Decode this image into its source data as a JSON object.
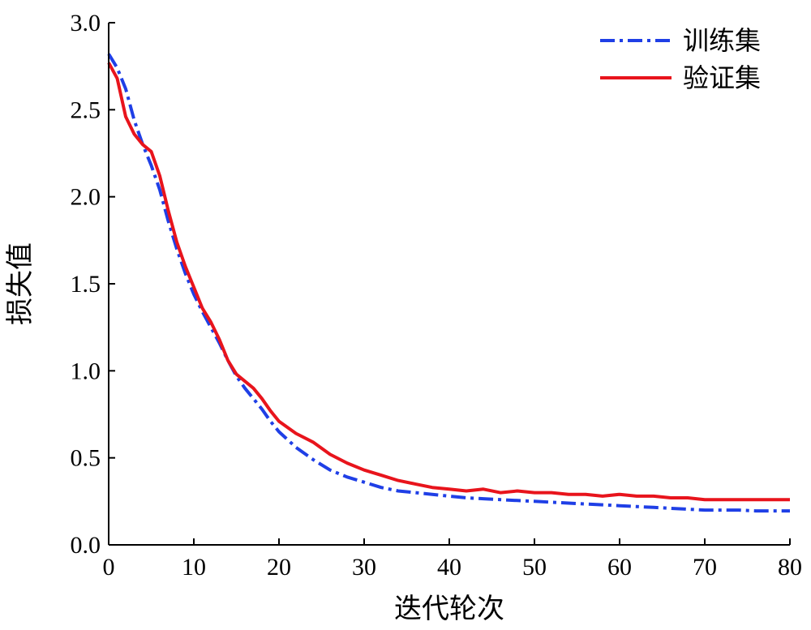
{
  "chart_data": {
    "type": "line",
    "xlabel": "迭代轮次",
    "ylabel": "损失值",
    "xlim": [
      0,
      80
    ],
    "ylim": [
      0.0,
      3.0
    ],
    "xticks": [
      "0",
      "10",
      "20",
      "30",
      "40",
      "50",
      "60",
      "70",
      "80"
    ],
    "yticks": [
      "0.0",
      "0.5",
      "1.0",
      "1.5",
      "2.0",
      "2.5",
      "3.0"
    ],
    "grid": false,
    "legend_position": "top-right",
    "series": [
      {
        "name": "训练集",
        "color": "#1f3fe6",
        "style": "dashdot",
        "x": [
          0,
          1,
          2,
          3,
          4,
          5,
          6,
          7,
          8,
          9,
          10,
          11,
          12,
          13,
          14,
          15,
          16,
          17,
          18,
          19,
          20,
          22,
          24,
          26,
          28,
          30,
          32,
          34,
          36,
          38,
          40,
          42,
          44,
          46,
          48,
          50,
          52,
          54,
          56,
          58,
          60,
          62,
          64,
          66,
          68,
          70,
          72,
          74,
          76,
          78,
          80
        ],
        "values": [
          2.82,
          2.74,
          2.62,
          2.44,
          2.3,
          2.18,
          2.04,
          1.86,
          1.7,
          1.56,
          1.44,
          1.34,
          1.25,
          1.16,
          1.06,
          0.97,
          0.9,
          0.84,
          0.78,
          0.71,
          0.65,
          0.56,
          0.49,
          0.43,
          0.39,
          0.36,
          0.33,
          0.31,
          0.3,
          0.29,
          0.28,
          0.27,
          0.265,
          0.26,
          0.255,
          0.25,
          0.245,
          0.24,
          0.235,
          0.23,
          0.225,
          0.22,
          0.215,
          0.21,
          0.205,
          0.2,
          0.2,
          0.2,
          0.195,
          0.195,
          0.195
        ]
      },
      {
        "name": "验证集",
        "color": "#e8141c",
        "style": "solid",
        "x": [
          0,
          1,
          2,
          3,
          4,
          5,
          6,
          7,
          8,
          9,
          10,
          11,
          12,
          13,
          14,
          15,
          16,
          17,
          18,
          19,
          20,
          22,
          24,
          26,
          28,
          30,
          32,
          34,
          36,
          38,
          40,
          42,
          44,
          46,
          48,
          50,
          52,
          54,
          56,
          58,
          60,
          62,
          64,
          66,
          68,
          70,
          72,
          74,
          76,
          78,
          80
        ],
        "values": [
          2.77,
          2.68,
          2.46,
          2.36,
          2.3,
          2.26,
          2.12,
          1.92,
          1.74,
          1.6,
          1.48,
          1.36,
          1.28,
          1.18,
          1.06,
          0.98,
          0.94,
          0.9,
          0.84,
          0.77,
          0.71,
          0.64,
          0.59,
          0.52,
          0.47,
          0.43,
          0.4,
          0.37,
          0.35,
          0.33,
          0.32,
          0.31,
          0.32,
          0.3,
          0.31,
          0.3,
          0.3,
          0.29,
          0.29,
          0.28,
          0.29,
          0.28,
          0.28,
          0.27,
          0.27,
          0.26,
          0.26,
          0.26,
          0.26,
          0.26,
          0.26
        ]
      }
    ]
  }
}
